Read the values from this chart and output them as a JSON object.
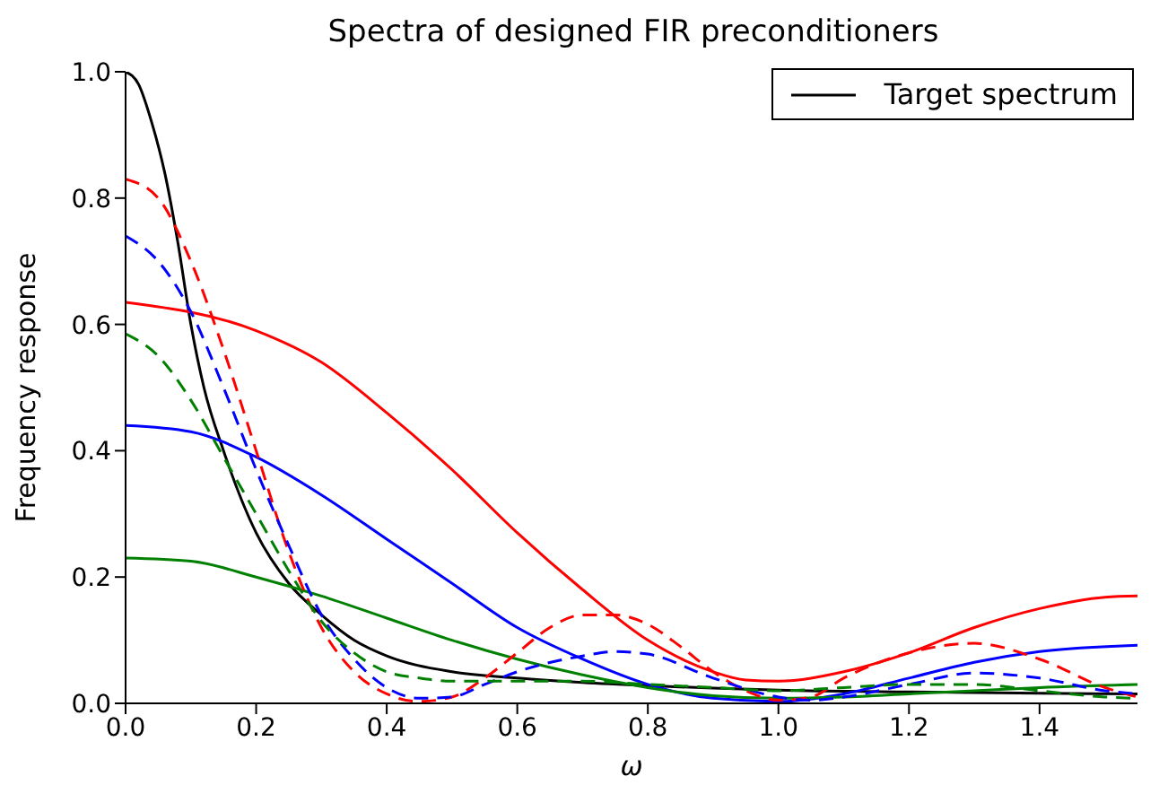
{
  "chart_data": {
    "type": "line",
    "title": "Spectra of designed FIR preconditioners",
    "xlabel": "ω",
    "ylabel": "Frequency response",
    "xlim": [
      0,
      1.55
    ],
    "xticks": [
      {
        "value": 0,
        "label": "0.0"
      },
      {
        "value": 0.2,
        "label": "0.2"
      },
      {
        "value": 0.4,
        "label": "0.4"
      },
      {
        "value": 0.6,
        "label": "0.6"
      },
      {
        "value": 0.8,
        "label": "0.8"
      },
      {
        "value": 1,
        "label": "1.0"
      },
      {
        "value": 1.2,
        "label": "1.2"
      },
      {
        "value": 1.4,
        "label": "1.4"
      }
    ],
    "ylim": [
      0,
      1
    ],
    "yticks": [
      {
        "value": 0,
        "label": "0.0"
      },
      {
        "value": 0.2,
        "label": "0.2"
      },
      {
        "value": 0.4,
        "label": "0.4"
      },
      {
        "value": 0.6,
        "label": "0.6"
      },
      {
        "value": 0.8,
        "label": "0.8"
      },
      {
        "value": 1,
        "label": "1.0"
      }
    ],
    "grid": false,
    "legend": "top right",
    "marker": "none",
    "series": [
      {
        "name": "Target spectrum",
        "color": "#000000",
        "line_style": "solid",
        "x": [
          0,
          0.02,
          0.04,
          0.06,
          0.08,
          0.1,
          0.12,
          0.15,
          0.2,
          0.25,
          0.3,
          0.35,
          0.4,
          0.5,
          0.6,
          0.7,
          0.8,
          0.9,
          1.0,
          1.2,
          1.4,
          1.55
        ],
        "values": [
          1.0,
          0.98,
          0.92,
          0.84,
          0.73,
          0.6,
          0.5,
          0.4,
          0.27,
          0.19,
          0.14,
          0.1,
          0.075,
          0.05,
          0.04,
          0.033,
          0.028,
          0.024,
          0.021,
          0.018,
          0.016,
          0.015
        ]
      },
      {
        "color": "#ff0000",
        "line_style": "solid",
        "x": [
          0,
          0.2,
          0.3,
          0.4,
          0.5,
          0.6,
          0.7,
          0.8,
          0.9,
          0.95,
          1.0,
          1.1,
          1.2,
          1.3,
          1.4,
          1.5,
          1.55
        ],
        "values": [
          0.635,
          0.59,
          0.54,
          0.46,
          0.37,
          0.27,
          0.18,
          0.1,
          0.05,
          0.037,
          0.035,
          0.05,
          0.08,
          0.12,
          0.15,
          0.168,
          0.17
        ]
      },
      {
        "color": "#0000ff",
        "line_style": "solid",
        "x": [
          0,
          0.1,
          0.2,
          0.3,
          0.4,
          0.5,
          0.6,
          0.7,
          0.8,
          0.9,
          1.0,
          1.1,
          1.2,
          1.3,
          1.4,
          1.55
        ],
        "values": [
          0.44,
          0.43,
          0.39,
          0.33,
          0.26,
          0.19,
          0.12,
          0.07,
          0.03,
          0.008,
          0.003,
          0.015,
          0.04,
          0.065,
          0.082,
          0.092
        ]
      },
      {
        "color": "#008000",
        "line_style": "solid",
        "x": [
          0,
          0.1,
          0.2,
          0.3,
          0.4,
          0.5,
          0.6,
          0.7,
          0.8,
          0.9,
          1.0,
          1.1,
          1.2,
          1.3,
          1.4,
          1.55
        ],
        "values": [
          0.23,
          0.225,
          0.2,
          0.17,
          0.135,
          0.1,
          0.07,
          0.045,
          0.025,
          0.012,
          0.008,
          0.01,
          0.015,
          0.02,
          0.025,
          0.03
        ]
      },
      {
        "color": "#ff0000",
        "line_style": "dashed",
        "x": [
          0,
          0.05,
          0.1,
          0.15,
          0.2,
          0.25,
          0.3,
          0.35,
          0.4,
          0.45,
          0.5,
          0.55,
          0.6,
          0.65,
          0.7,
          0.75,
          0.8,
          0.85,
          0.9,
          0.95,
          1.0,
          1.05,
          1.1,
          1.2,
          1.3,
          1.4,
          1.5,
          1.55
        ],
        "values": [
          0.83,
          0.8,
          0.7,
          0.56,
          0.4,
          0.24,
          0.12,
          0.05,
          0.015,
          0.003,
          0.01,
          0.04,
          0.08,
          0.12,
          0.14,
          0.14,
          0.125,
          0.09,
          0.05,
          0.02,
          0.005,
          0.01,
          0.04,
          0.08,
          0.095,
          0.07,
          0.025,
          0.01
        ]
      },
      {
        "color": "#0000ff",
        "line_style": "dashed",
        "x": [
          0,
          0.05,
          0.1,
          0.15,
          0.2,
          0.25,
          0.3,
          0.35,
          0.4,
          0.45,
          0.5,
          0.55,
          0.6,
          0.7,
          0.75,
          0.8,
          0.9,
          1.0,
          1.05,
          1.1,
          1.2,
          1.3,
          1.4,
          1.5,
          1.55
        ],
        "values": [
          0.74,
          0.7,
          0.62,
          0.5,
          0.37,
          0.25,
          0.14,
          0.07,
          0.025,
          0.008,
          0.01,
          0.03,
          0.05,
          0.075,
          0.082,
          0.078,
          0.04,
          0.01,
          0.005,
          0.01,
          0.03,
          0.048,
          0.04,
          0.02,
          0.015
        ]
      },
      {
        "color": "#008000",
        "line_style": "dashed",
        "x": [
          0,
          0.05,
          0.1,
          0.15,
          0.2,
          0.25,
          0.3,
          0.35,
          0.4,
          0.45,
          0.5,
          0.6,
          0.7,
          0.8,
          0.9,
          1.0,
          1.1,
          1.2,
          1.3,
          1.4,
          1.5,
          1.55
        ],
        "values": [
          0.585,
          0.55,
          0.48,
          0.39,
          0.3,
          0.21,
          0.13,
          0.08,
          0.05,
          0.04,
          0.035,
          0.035,
          0.035,
          0.03,
          0.025,
          0.02,
          0.025,
          0.03,
          0.03,
          0.02,
          0.01,
          0.008
        ]
      }
    ]
  }
}
